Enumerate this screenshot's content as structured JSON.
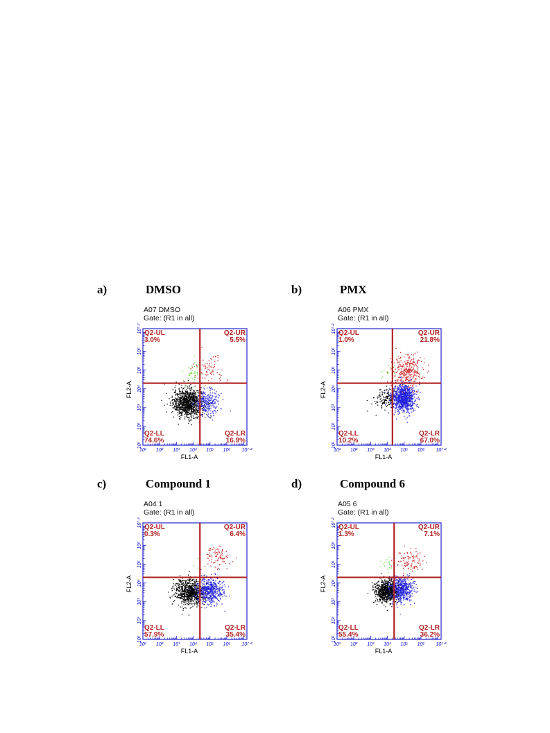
{
  "colors": {
    "frame": "#2222cc",
    "gate_line": "#b22222",
    "quadrant_text": "#b22222",
    "UL_points": "#66dd44",
    "UR_points": "#cc2222",
    "LL_points": "#000000",
    "LR_points": "#2222dd"
  },
  "chart_data": [
    {
      "type": "scatter",
      "panel": "a)",
      "title": "DMSO",
      "sample": "A07 DMSO",
      "gate": "Gate: (R1 in all)",
      "xlabel": "FL1-A",
      "ylabel": "FL2-A",
      "log_scale": true,
      "xlim": [
        1,
        7.2
      ],
      "ylim": [
        1,
        7.2
      ],
      "tick_labels": [
        "10^1",
        "10^2",
        "10^3",
        "10^4",
        "10^5",
        "10^6",
        "10^7.2"
      ],
      "quadrant_gates": {
        "x": 4.4,
        "y": 4.3
      },
      "quadrants": [
        {
          "name": "Q2-UL",
          "percent": "3.0%"
        },
        {
          "name": "Q2-UR",
          "percent": "5.5%"
        },
        {
          "name": "Q2-LL",
          "percent": "74.6%"
        },
        {
          "name": "Q2-LR",
          "percent": "16.9%"
        }
      ],
      "populations": {
        "LL": {
          "center": [
            3.7,
            3.25
          ],
          "spread": [
            0.45,
            0.38
          ]
        },
        "LR": {
          "center": [
            4.85,
            3.3
          ],
          "spread": [
            0.38,
            0.35
          ]
        },
        "UR": {
          "center": [
            5.0,
            5.05
          ],
          "spread": [
            0.45,
            0.35
          ]
        },
        "UL": {
          "center": [
            3.95,
            4.85
          ],
          "spread": [
            0.28,
            0.3
          ]
        }
      }
    },
    {
      "type": "scatter",
      "panel": "b)",
      "title": "PMX",
      "sample": "A06 PMX",
      "gate": "Gate: (R1 in all)",
      "xlabel": "FL1-A",
      "ylabel": "FL2-A",
      "log_scale": true,
      "xlim": [
        1,
        7.2
      ],
      "ylim": [
        1,
        7.2
      ],
      "tick_labels": [
        "10^1",
        "10^2",
        "10^3",
        "10^4",
        "10^5",
        "10^6",
        "10^7.2"
      ],
      "quadrant_gates": {
        "x": 4.3,
        "y": 4.3
      },
      "quadrants": [
        {
          "name": "Q2-UL",
          "percent": "1.0%"
        },
        {
          "name": "Q2-UR",
          "percent": "21.8%"
        },
        {
          "name": "Q2-LL",
          "percent": "10.2%"
        },
        {
          "name": "Q2-LR",
          "percent": "67.0%"
        }
      ],
      "populations": {
        "LL": {
          "center": [
            3.95,
            3.5
          ],
          "spread": [
            0.35,
            0.3
          ]
        },
        "LR": {
          "center": [
            4.95,
            3.5
          ],
          "spread": [
            0.35,
            0.35
          ]
        },
        "UR": {
          "center": [
            5.2,
            4.95
          ],
          "spread": [
            0.45,
            0.45
          ]
        },
        "UL": {
          "center": [
            3.95,
            5.0
          ],
          "spread": [
            0.25,
            0.25
          ]
        }
      }
    },
    {
      "type": "scatter",
      "panel": "c)",
      "title": "Compound 1",
      "sample": "A04 1",
      "gate": "Gate: (R1 in all)",
      "xlabel": "FL1-A",
      "ylabel": "FL2-A",
      "log_scale": true,
      "xlim": [
        1,
        7.2
      ],
      "ylim": [
        1,
        7.2
      ],
      "tick_labels": [
        "10^1",
        "10^2",
        "10^3",
        "10^4",
        "10^5",
        "10^6",
        "10^7.2"
      ],
      "quadrant_gates": {
        "x": 4.4,
        "y": 4.3
      },
      "quadrants": [
        {
          "name": "Q2-UL",
          "percent": "0.3%"
        },
        {
          "name": "Q2-UR",
          "percent": "6.4%"
        },
        {
          "name": "Q2-LL",
          "percent": "57.9%"
        },
        {
          "name": "Q2-LR",
          "percent": "35.4%"
        }
      ],
      "populations": {
        "LL": {
          "center": [
            3.8,
            3.5
          ],
          "spread": [
            0.45,
            0.35
          ]
        },
        "LR": {
          "center": [
            5.0,
            3.6
          ],
          "spread": [
            0.4,
            0.35
          ]
        },
        "UR": {
          "center": [
            5.5,
            5.35
          ],
          "spread": [
            0.4,
            0.3
          ]
        },
        "UL": {
          "center": [
            4.1,
            4.9
          ],
          "spread": [
            0.2,
            0.25
          ]
        }
      }
    },
    {
      "type": "scatter",
      "panel": "d)",
      "title": "Compound 6",
      "sample": "A05 6",
      "gate": "Gate: (R1 in all)",
      "xlabel": "FL1-A",
      "ylabel": "FL2-A",
      "log_scale": true,
      "xlim": [
        1,
        7.2
      ],
      "ylim": [
        1,
        7.2
      ],
      "tick_labels": [
        "10^1",
        "10^2",
        "10^3",
        "10^4",
        "10^5",
        "10^6",
        "10^7.2"
      ],
      "quadrant_gates": {
        "x": 4.4,
        "y": 4.3
      },
      "quadrants": [
        {
          "name": "Q2-UL",
          "percent": "1.3%"
        },
        {
          "name": "Q2-UR",
          "percent": "7.1%"
        },
        {
          "name": "Q2-LL",
          "percent": "55.4%"
        },
        {
          "name": "Q2-LR",
          "percent": "36.2%"
        }
      ],
      "populations": {
        "LL": {
          "center": [
            3.95,
            3.55
          ],
          "spread": [
            0.35,
            0.3
          ]
        },
        "LR": {
          "center": [
            4.85,
            3.65
          ],
          "spread": [
            0.35,
            0.35
          ]
        },
        "UR": {
          "center": [
            5.4,
            5.2
          ],
          "spread": [
            0.45,
            0.35
          ]
        },
        "UL": {
          "center": [
            4.05,
            4.9
          ],
          "spread": [
            0.2,
            0.3
          ]
        }
      }
    }
  ]
}
